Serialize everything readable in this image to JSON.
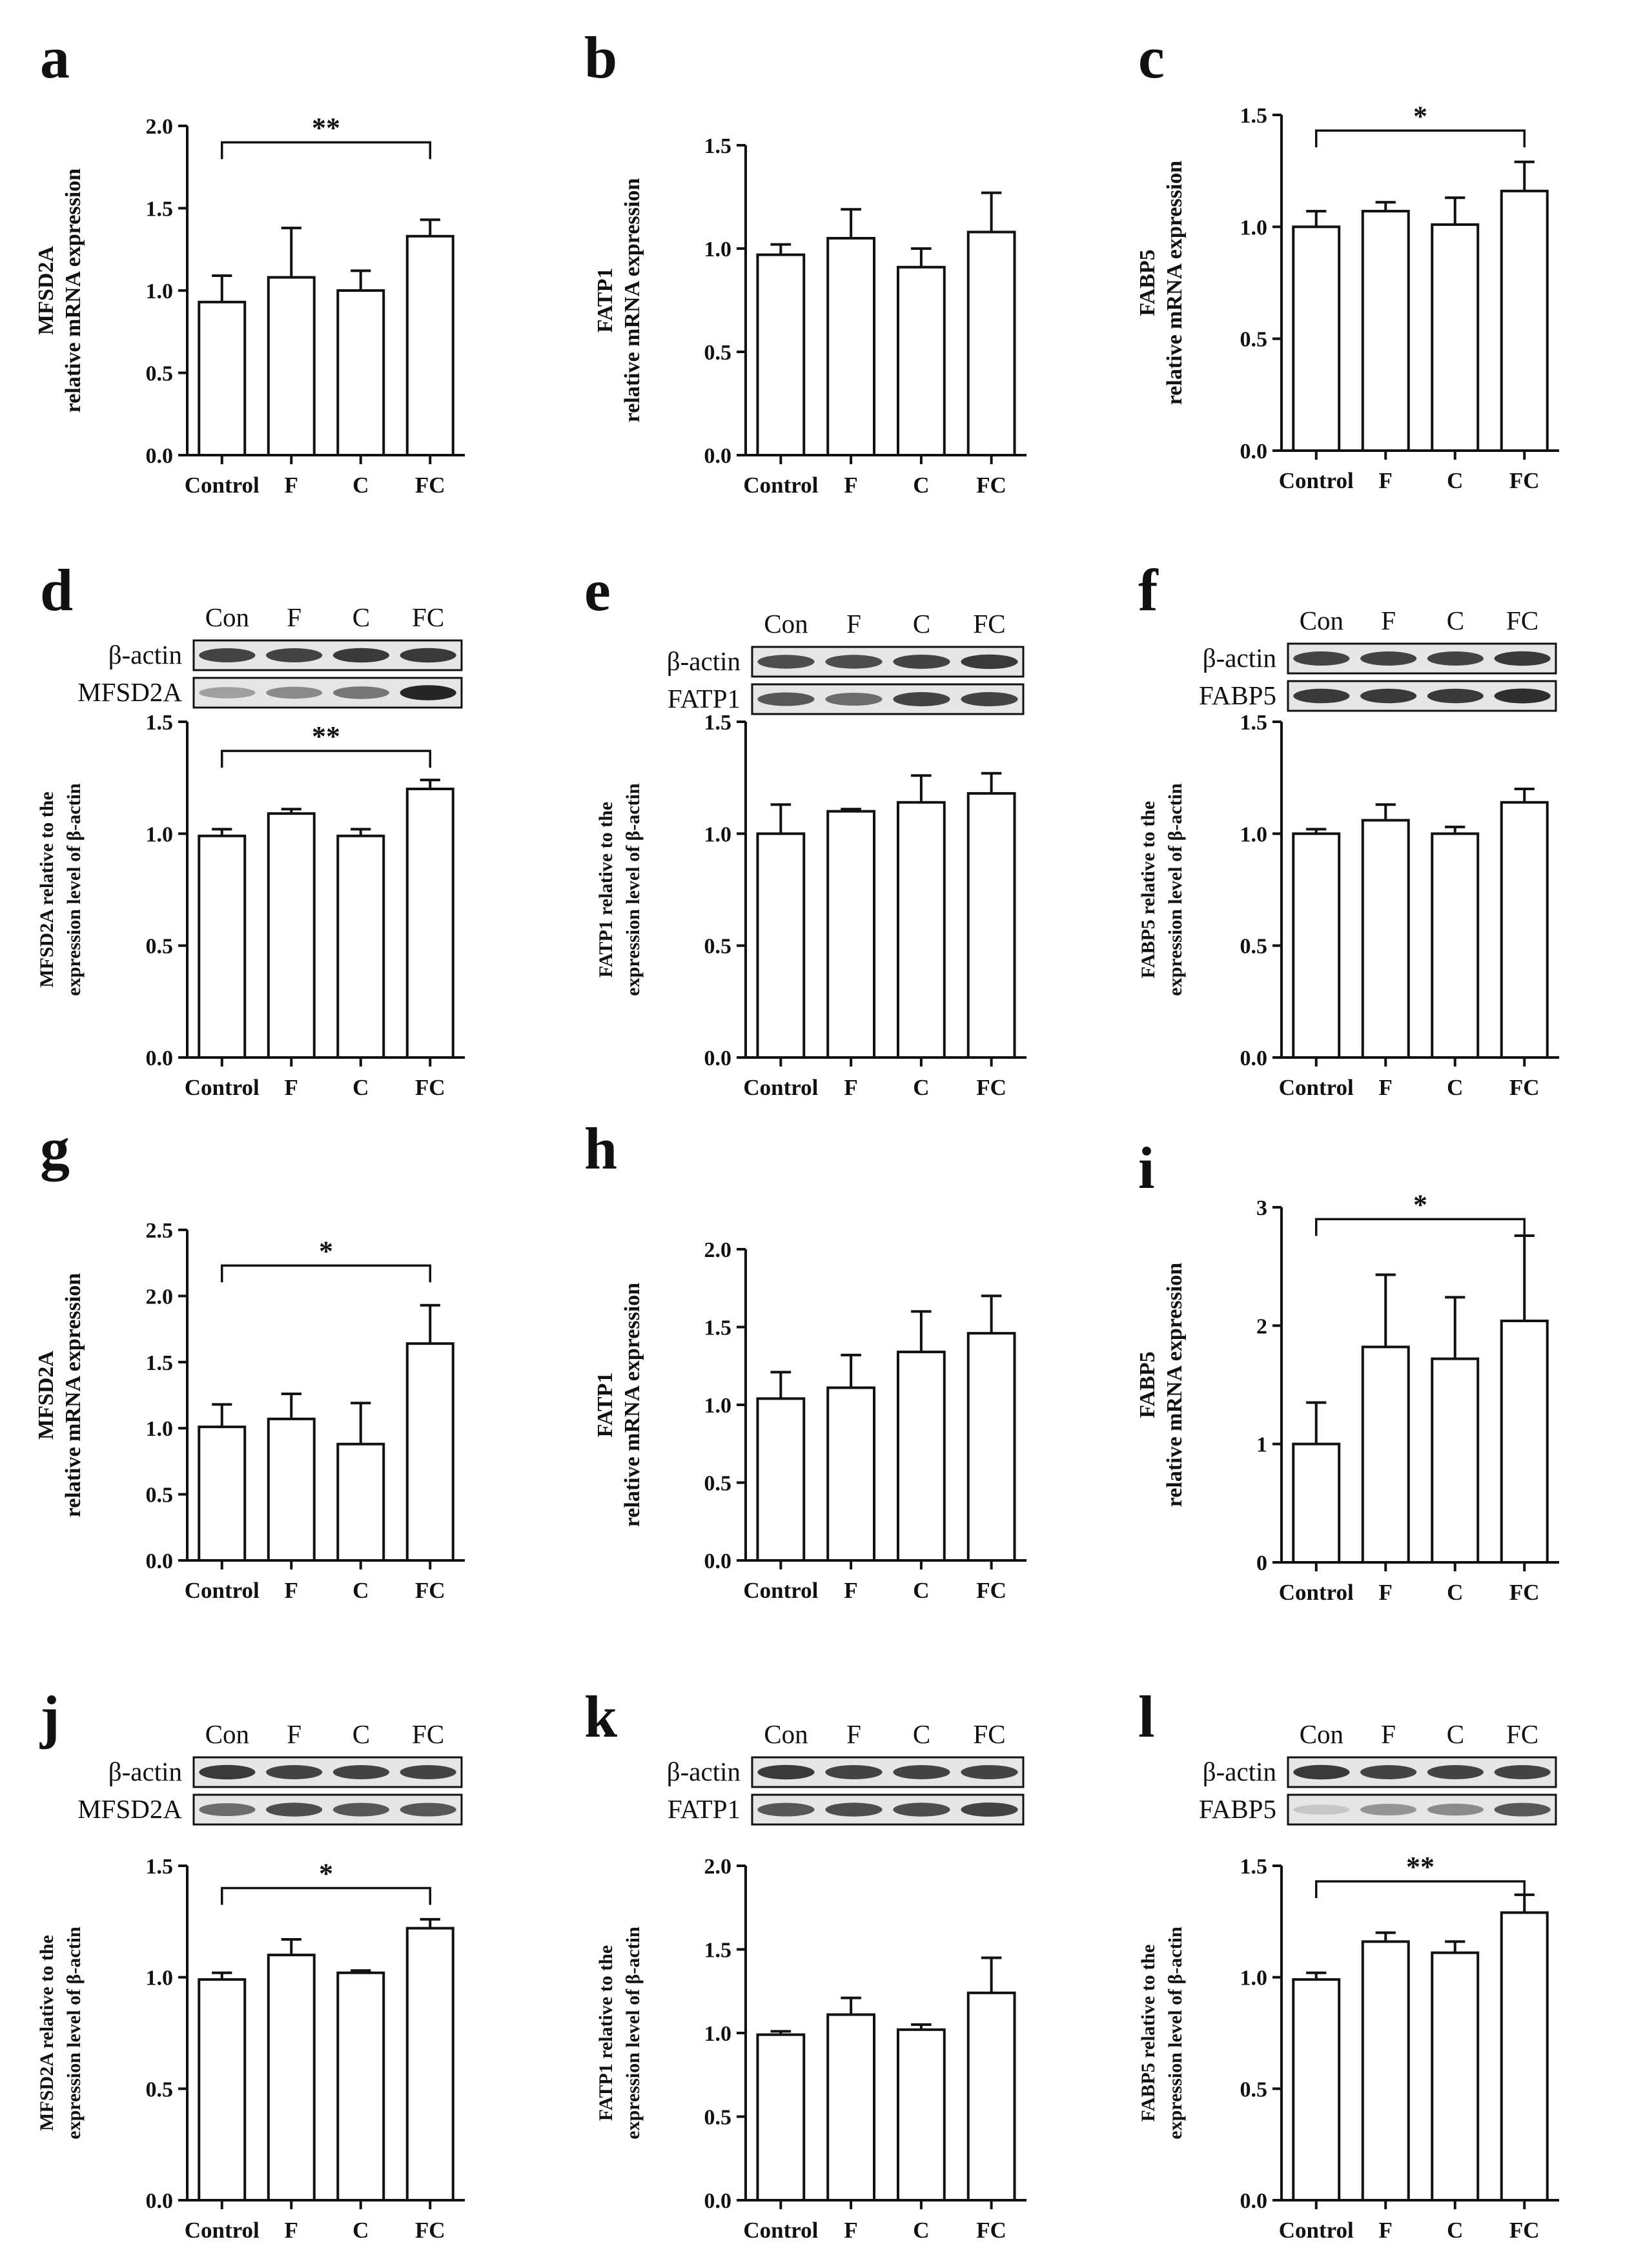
{
  "chart_data": [
    {
      "id": "a",
      "type": "bar",
      "kind": "mrna",
      "title": "",
      "ylabel_lines": [
        "MFSD2A",
        "relative mRNA expression"
      ],
      "categories": [
        "Control",
        "F",
        "C",
        "FC"
      ],
      "values": [
        0.93,
        1.08,
        1.0,
        1.33
      ],
      "errors": [
        0.16,
        0.3,
        0.12,
        0.1
      ],
      "yticks": [
        "0.0",
        "0.5",
        "1.0",
        "1.5",
        "2.0"
      ],
      "ylim": [
        0,
        2.0
      ],
      "sig": {
        "label": "**",
        "from": 0,
        "to": 3,
        "y": 1.9
      }
    },
    {
      "id": "b",
      "type": "bar",
      "kind": "mrna",
      "title": "",
      "ylabel_lines": [
        "FATP1",
        "relative mRNA expression"
      ],
      "categories": [
        "Control",
        "F",
        "C",
        "FC"
      ],
      "values": [
        0.97,
        1.05,
        0.91,
        1.08
      ],
      "errors": [
        0.05,
        0.14,
        0.09,
        0.19
      ],
      "yticks": [
        "0.0",
        "0.5",
        "1.0",
        "1.5"
      ],
      "ylim": [
        0,
        1.5
      ],
      "sig": null
    },
    {
      "id": "c",
      "type": "bar",
      "kind": "mrna",
      "title": "",
      "ylabel_lines": [
        "FABP5",
        "relative mRNA expression"
      ],
      "categories": [
        "Control",
        "F",
        "C",
        "FC"
      ],
      "values": [
        1.0,
        1.07,
        1.01,
        1.16
      ],
      "errors": [
        0.07,
        0.04,
        0.12,
        0.13
      ],
      "yticks": [
        "0.0",
        "0.5",
        "1.0",
        "1.5"
      ],
      "ylim": [
        0,
        1.5
      ],
      "sig": {
        "label": "*",
        "from": 0,
        "to": 3,
        "y": 1.43
      }
    },
    {
      "id": "d",
      "type": "bar",
      "kind": "wb",
      "title": "",
      "ylabel_lines": [
        "MFSD2A  relative to the",
        "expression level of β-actin"
      ],
      "categories": [
        "Control",
        "F",
        "C",
        "FC"
      ],
      "values": [
        0.99,
        1.09,
        0.99,
        1.2
      ],
      "errors": [
        0.03,
        0.02,
        0.03,
        0.04
      ],
      "yticks": [
        "0.0",
        "0.5",
        "1.0",
        "1.5"
      ],
      "ylim": [
        0,
        1.5
      ],
      "sig": {
        "label": "**",
        "from": 0,
        "to": 3,
        "y": 1.37
      },
      "blot_lanes": [
        "Con",
        "F",
        "C",
        "FC"
      ],
      "blot_rows": [
        "β-actin",
        "MFSD2A"
      ],
      "blot_intensity": [
        [
          0.8,
          0.8,
          0.85,
          0.85
        ],
        [
          0.35,
          0.45,
          0.55,
          0.95
        ]
      ]
    },
    {
      "id": "e",
      "type": "bar",
      "kind": "wb",
      "title": "",
      "ylabel_lines": [
        "FATP1  relative to the",
        "expression level of β-actin"
      ],
      "categories": [
        "Control",
        "F",
        "C",
        "FC"
      ],
      "values": [
        1.0,
        1.1,
        1.14,
        1.18
      ],
      "errors": [
        0.13,
        0.01,
        0.12,
        0.09
      ],
      "yticks": [
        "0.0",
        "0.5",
        "1.0",
        "1.5"
      ],
      "ylim": [
        0,
        1.5
      ],
      "sig": null,
      "blot_lanes": [
        "Con",
        "F",
        "C",
        "FC"
      ],
      "blot_rows": [
        "β-actin",
        "FATP1"
      ],
      "blot_intensity": [
        [
          0.75,
          0.75,
          0.8,
          0.85
        ],
        [
          0.7,
          0.6,
          0.8,
          0.8
        ]
      ]
    },
    {
      "id": "f",
      "type": "bar",
      "kind": "wb",
      "title": "",
      "ylabel_lines": [
        "FABP5  relative to the",
        "expression level of β-actin"
      ],
      "categories": [
        "Control",
        "F",
        "C",
        "FC"
      ],
      "values": [
        1.0,
        1.06,
        1.0,
        1.14
      ],
      "errors": [
        0.02,
        0.07,
        0.03,
        0.06
      ],
      "yticks": [
        "0.0",
        "0.5",
        "1.0",
        "1.5"
      ],
      "ylim": [
        0,
        1.5
      ],
      "sig": null,
      "blot_lanes": [
        "Con",
        "F",
        "C",
        "FC"
      ],
      "blot_rows": [
        "β-actin",
        "FABP5"
      ],
      "blot_intensity": [
        [
          0.8,
          0.8,
          0.8,
          0.85
        ],
        [
          0.85,
          0.85,
          0.85,
          0.9
        ]
      ]
    },
    {
      "id": "g",
      "type": "bar",
      "kind": "mrna",
      "title": "",
      "ylabel_lines": [
        "MFSD2A",
        "relative mRNA expression"
      ],
      "categories": [
        "Control",
        "F",
        "C",
        "FC"
      ],
      "values": [
        1.01,
        1.07,
        0.88,
        1.64
      ],
      "errors": [
        0.17,
        0.19,
        0.31,
        0.29
      ],
      "yticks": [
        "0.0",
        "0.5",
        "1.0",
        "1.5",
        "2.0",
        "2.5"
      ],
      "ylim": [
        0,
        2.5
      ],
      "sig": {
        "label": "*",
        "from": 0,
        "to": 3,
        "y": 2.23
      }
    },
    {
      "id": "h",
      "type": "bar",
      "kind": "mrna",
      "title": "",
      "ylabel_lines": [
        "FATP1",
        "relative mRNA expression"
      ],
      "categories": [
        "Control",
        "F",
        "C",
        "FC"
      ],
      "values": [
        1.04,
        1.11,
        1.34,
        1.46
      ],
      "errors": [
        0.17,
        0.21,
        0.26,
        0.24
      ],
      "yticks": [
        "0.0",
        "0.5",
        "1.0",
        "1.5",
        "2.0"
      ],
      "ylim": [
        0,
        2.0
      ],
      "sig": null
    },
    {
      "id": "i",
      "type": "bar",
      "kind": "mrna",
      "title": "",
      "ylabel_lines": [
        "FABP5",
        "relative mRNA expression"
      ],
      "categories": [
        "Control",
        "F",
        "C",
        "FC"
      ],
      "values": [
        1.0,
        1.82,
        1.72,
        2.04
      ],
      "errors": [
        0.35,
        0.61,
        0.52,
        0.72
      ],
      "yticks": [
        "0",
        "1",
        "2",
        "3"
      ],
      "ylim": [
        0,
        3
      ],
      "sig": {
        "label": "*",
        "from": 0,
        "to": 3,
        "y": 2.9
      }
    },
    {
      "id": "j",
      "type": "bar",
      "kind": "wb",
      "title": "",
      "ylabel_lines": [
        "MFSD2A  relative to the",
        "expression level of β-actin"
      ],
      "categories": [
        "Control",
        "F",
        "C",
        "FC"
      ],
      "values": [
        0.99,
        1.1,
        1.02,
        1.22
      ],
      "errors": [
        0.03,
        0.07,
        0.01,
        0.04
      ],
      "yticks": [
        "0.0",
        "0.5",
        "1.0",
        "1.5"
      ],
      "ylim": [
        0,
        1.5
      ],
      "sig": {
        "label": "*",
        "from": 0,
        "to": 3,
        "y": 1.4
      },
      "blot_lanes": [
        "Con",
        "F",
        "C",
        "FC"
      ],
      "blot_rows": [
        "β-actin",
        "MFSD2A"
      ],
      "blot_intensity": [
        [
          0.85,
          0.8,
          0.8,
          0.8
        ],
        [
          0.6,
          0.75,
          0.7,
          0.7
        ]
      ]
    },
    {
      "id": "k",
      "type": "bar",
      "kind": "wb",
      "title": "",
      "ylabel_lines": [
        "FATP1  relative to the",
        "expression level of β-actin"
      ],
      "categories": [
        "Control",
        "F",
        "C",
        "FC"
      ],
      "values": [
        0.99,
        1.11,
        1.02,
        1.24
      ],
      "errors": [
        0.02,
        0.1,
        0.03,
        0.21
      ],
      "yticks": [
        "0.0",
        "0.5",
        "1.0",
        "1.5",
        "2.0"
      ],
      "ylim": [
        0,
        2.0
      ],
      "sig": null,
      "blot_lanes": [
        "Con",
        "F",
        "C",
        "FC"
      ],
      "blot_rows": [
        "β-actin",
        "FATP1"
      ],
      "blot_intensity": [
        [
          0.85,
          0.8,
          0.8,
          0.8
        ],
        [
          0.7,
          0.75,
          0.75,
          0.8
        ]
      ]
    },
    {
      "id": "l",
      "type": "bar",
      "kind": "wb",
      "title": "",
      "ylabel_lines": [
        "FABP5  relative to the",
        "expression level of β-actin"
      ],
      "categories": [
        "Control",
        "F",
        "C",
        "FC"
      ],
      "values": [
        0.99,
        1.16,
        1.11,
        1.29
      ],
      "errors": [
        0.03,
        0.04,
        0.05,
        0.08
      ],
      "yticks": [
        "0.0",
        "0.5",
        "1.0",
        "1.5"
      ],
      "ylim": [
        0,
        1.5
      ],
      "sig": {
        "label": "**",
        "from": 0,
        "to": 3,
        "y": 1.43
      },
      "blot_lanes": [
        "Con",
        "F",
        "C",
        "FC"
      ],
      "blot_rows": [
        "β-actin",
        "FABP5"
      ],
      "blot_intensity": [
        [
          0.85,
          0.8,
          0.8,
          0.8
        ],
        [
          0.15,
          0.4,
          0.45,
          0.7
        ]
      ]
    }
  ],
  "colors": {
    "bar_fill": "#ffffff",
    "stroke": "#111111",
    "blot_bg": "#e6e6e6",
    "band": "#1a1a1a"
  }
}
